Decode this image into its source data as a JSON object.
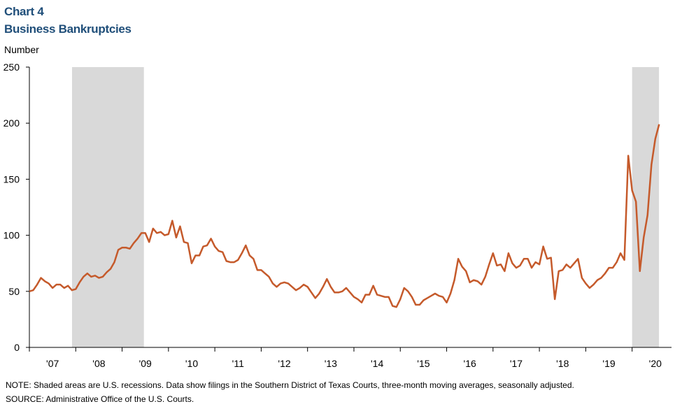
{
  "chart_data": {
    "type": "line",
    "title": "Chart 4",
    "subtitle": "Business Bankruptcies",
    "y_label": "Number",
    "notes": [
      "NOTE: Shaded areas are U.S. recessions. Data show filings in the Southern District of Texas Courts, three-month  moving averages,  seasonally adjusted.",
      "SOURCE: Administrative Office of the U.S. Courts."
    ],
    "shaded_ranges": [
      [
        2007.92,
        2009.47
      ],
      [
        2020.0,
        2020.58
      ]
    ],
    "shade_color": "#d9d9d9",
    "xlim": [
      2007,
      2020.85
    ],
    "ylim": [
      0,
      250
    ],
    "yticks": [
      0,
      50,
      100,
      150,
      200,
      250
    ],
    "xticks": [
      {
        "value": 2007.5,
        "label": "'07"
      },
      {
        "value": 2008.5,
        "label": "'08"
      },
      {
        "value": 2009.5,
        "label": "'09"
      },
      {
        "value": 2010.5,
        "label": "'10"
      },
      {
        "value": 2011.5,
        "label": "'11"
      },
      {
        "value": 2012.5,
        "label": "'12"
      },
      {
        "value": 2013.5,
        "label": "'13"
      },
      {
        "value": 2014.5,
        "label": "'14"
      },
      {
        "value": 2015.5,
        "label": "'15"
      },
      {
        "value": 2016.5,
        "label": "'16"
      },
      {
        "value": 2017.5,
        "label": "'17"
      },
      {
        "value": 2018.5,
        "label": "'18"
      },
      {
        "value": 2019.5,
        "label": "'19"
      },
      {
        "value": 2020.5,
        "label": "'20"
      }
    ],
    "x": [
      2007.0,
      2007.083,
      2007.167,
      2007.25,
      2007.333,
      2007.417,
      2007.5,
      2007.583,
      2007.667,
      2007.75,
      2007.833,
      2007.917,
      2008.0,
      2008.083,
      2008.167,
      2008.25,
      2008.333,
      2008.417,
      2008.5,
      2008.583,
      2008.667,
      2008.75,
      2008.833,
      2008.917,
      2009.0,
      2009.083,
      2009.167,
      2009.25,
      2009.333,
      2009.417,
      2009.5,
      2009.583,
      2009.667,
      2009.75,
      2009.833,
      2009.917,
      2010.0,
      2010.083,
      2010.167,
      2010.25,
      2010.333,
      2010.417,
      2010.5,
      2010.583,
      2010.667,
      2010.75,
      2010.833,
      2010.917,
      2011.0,
      2011.083,
      2011.167,
      2011.25,
      2011.333,
      2011.417,
      2011.5,
      2011.583,
      2011.667,
      2011.75,
      2011.833,
      2011.917,
      2012.0,
      2012.083,
      2012.167,
      2012.25,
      2012.333,
      2012.417,
      2012.5,
      2012.583,
      2012.667,
      2012.75,
      2012.833,
      2012.917,
      2013.0,
      2013.083,
      2013.167,
      2013.25,
      2013.333,
      2013.417,
      2013.5,
      2013.583,
      2013.667,
      2013.75,
      2013.833,
      2013.917,
      2014.0,
      2014.083,
      2014.167,
      2014.25,
      2014.333,
      2014.417,
      2014.5,
      2014.583,
      2014.667,
      2014.75,
      2014.833,
      2014.917,
      2015.0,
      2015.083,
      2015.167,
      2015.25,
      2015.333,
      2015.417,
      2015.5,
      2015.583,
      2015.667,
      2015.75,
      2015.833,
      2015.917,
      2016.0,
      2016.083,
      2016.167,
      2016.25,
      2016.333,
      2016.417,
      2016.5,
      2016.583,
      2016.667,
      2016.75,
      2016.833,
      2016.917,
      2017.0,
      2017.083,
      2017.167,
      2017.25,
      2017.333,
      2017.417,
      2017.5,
      2017.583,
      2017.667,
      2017.75,
      2017.833,
      2017.917,
      2018.0,
      2018.083,
      2018.167,
      2018.25,
      2018.333,
      2018.417,
      2018.5,
      2018.583,
      2018.667,
      2018.75,
      2018.833,
      2018.917,
      2019.0,
      2019.083,
      2019.167,
      2019.25,
      2019.333,
      2019.417,
      2019.5,
      2019.583,
      2019.667,
      2019.75,
      2019.833,
      2019.917,
      2020.0,
      2020.083,
      2020.167,
      2020.25,
      2020.333,
      2020.417,
      2020.5,
      2020.583
    ],
    "series": [
      {
        "name": "Business Bankruptcies",
        "color": "#c55a2b",
        "values": [
          50,
          51,
          56,
          62,
          59,
          57,
          53,
          56,
          56,
          53,
          55,
          51,
          52,
          58,
          63,
          66,
          63,
          64,
          62,
          63,
          67,
          70,
          76,
          87,
          89,
          89,
          88,
          93,
          97,
          102,
          102,
          94,
          106,
          102,
          103,
          100,
          101,
          113,
          98,
          108,
          94,
          93,
          75,
          82,
          82,
          90,
          91,
          97,
          90,
          86,
          85,
          77,
          76,
          76,
          78,
          84,
          91,
          82,
          79,
          69,
          69,
          66,
          63,
          57,
          54,
          57,
          58,
          57,
          54,
          51,
          53,
          56,
          54,
          49,
          44,
          48,
          54,
          61,
          54,
          49,
          49,
          50,
          53,
          49,
          45,
          43,
          40,
          47,
          47,
          55,
          47,
          46,
          45,
          45,
          37,
          36,
          43,
          53,
          50,
          45,
          38,
          38,
          42,
          44,
          46,
          48,
          46,
          45,
          40,
          48,
          60,
          79,
          72,
          68,
          58,
          60,
          59,
          56,
          63,
          74,
          84,
          73,
          74,
          68,
          84,
          75,
          71,
          73,
          79,
          79,
          71,
          76,
          74,
          90,
          79,
          80,
          43,
          68,
          69,
          74,
          71,
          75,
          79,
          62,
          57,
          53,
          56,
          60,
          62,
          66,
          71,
          71,
          76,
          84,
          78,
          171,
          140,
          130,
          68,
          98,
          118,
          163,
          186,
          199
        ]
      }
    ]
  }
}
